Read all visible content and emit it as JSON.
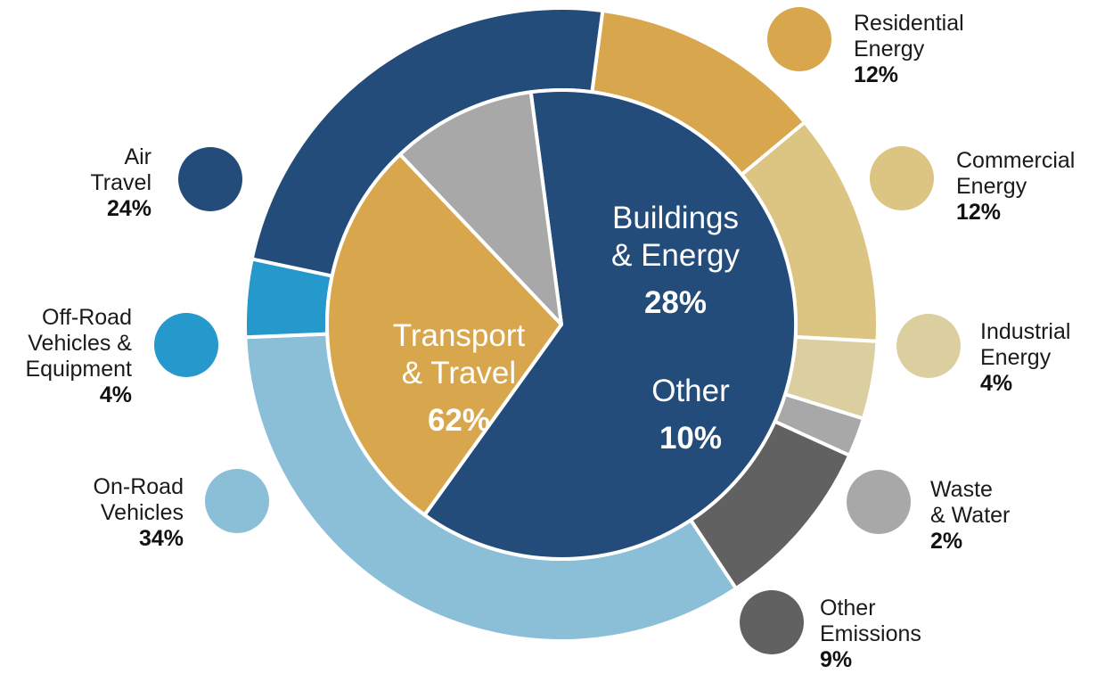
{
  "chart_data": {
    "type": "pie",
    "inner": [
      {
        "label": [
          "Transport",
          "& Travel"
        ],
        "value": 62,
        "value_label": "62%",
        "color": "#234c7b"
      },
      {
        "label": [
          "Buildings",
          "& Energy"
        ],
        "value": 28,
        "value_label": "28%",
        "color": "#d8a74d"
      },
      {
        "label": [
          "Other"
        ],
        "value": 10,
        "value_label": "10%",
        "color": "#a8a8a8"
      }
    ],
    "outer": [
      {
        "label": [
          "Residential",
          "Energy"
        ],
        "value": 12,
        "value_label": "12%",
        "color": "#d8a74d"
      },
      {
        "label": [
          "Commercial",
          "Energy"
        ],
        "value": 12,
        "value_label": "12%",
        "color": "#dcc483"
      },
      {
        "label": [
          "Industrial",
          "Energy"
        ],
        "value": 4,
        "value_label": "4%",
        "color": "#dccf9f"
      },
      {
        "label": [
          "Waste",
          "& Water"
        ],
        "value": 2,
        "value_label": "2%",
        "color": "#a8a8a8"
      },
      {
        "label": [
          "Other",
          "Emissions"
        ],
        "value": 9,
        "value_label": "9%",
        "color": "#616161"
      },
      {
        "label": [
          "On-Road",
          "Vehicles"
        ],
        "value": 34,
        "value_label": "34%",
        "color": "#8bbfd8"
      },
      {
        "label": [
          "Off-Road",
          "Vehicles &",
          "Equipment"
        ],
        "value": 4,
        "value_label": "4%",
        "color": "#2598cc"
      },
      {
        "label": [
          "Air",
          "Travel"
        ],
        "value": 24,
        "value_label": "24%",
        "color": "#234c7b"
      }
    ]
  }
}
